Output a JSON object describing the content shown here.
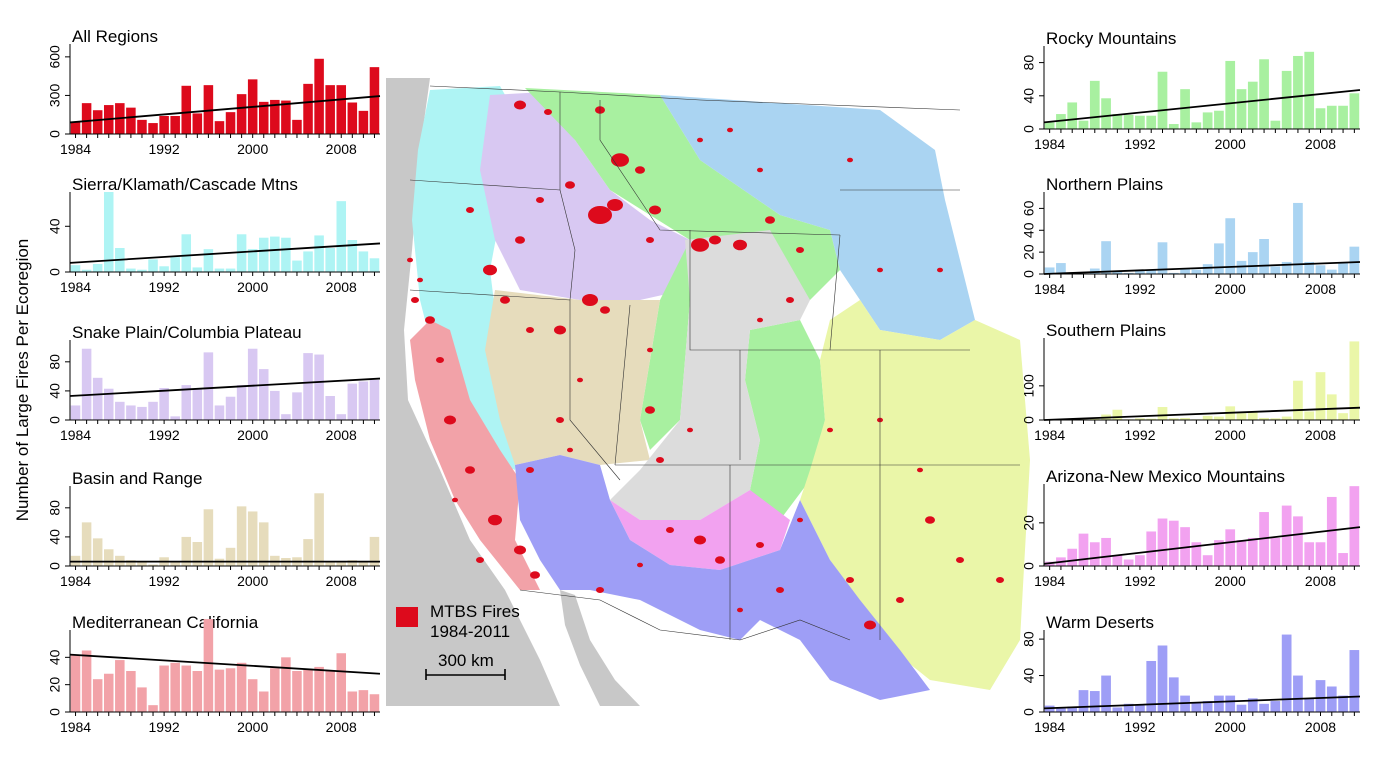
{
  "y_axis_label": "Number of Large Fires Per Ecoregion",
  "map": {
    "legend_label_line1": "MTBS Fires",
    "legend_label_line2": "1984-2011",
    "scale_label": "300 km",
    "fire_color": "#dd0a1c",
    "ocean_color": "#c8c8c8",
    "region_colors": {
      "sierra_klamath_cascade": "#aef4f4",
      "snake_columbia": "#d8c8f2",
      "rocky_mountains": "#a8f0a0",
      "northern_plains": "#aad4f2",
      "basin_and_range": "#e6dcbc",
      "mediterranean_california": "#f2a2a8",
      "southern_plains": "#eaf6a8",
      "arizona_new_mexico": "#f2a2f0",
      "warm_deserts": "#9e9ef6",
      "unclassified": "#dcdcdc"
    }
  },
  "chart_data": [
    {
      "type": "bar",
      "title": "All Regions",
      "color": "#dd0a1c",
      "x": [
        1984,
        1985,
        1986,
        1987,
        1988,
        1989,
        1990,
        1991,
        1992,
        1993,
        1994,
        1995,
        1996,
        1997,
        1998,
        1999,
        2000,
        2001,
        2002,
        2003,
        2004,
        2005,
        2006,
        2007,
        2008,
        2009,
        2010,
        2011
      ],
      "values": [
        90,
        240,
        185,
        225,
        240,
        205,
        110,
        85,
        140,
        140,
        375,
        160,
        380,
        100,
        170,
        310,
        425,
        250,
        265,
        260,
        110,
        390,
        585,
        380,
        380,
        245,
        180,
        520
      ],
      "trend": [
        90,
        295
      ],
      "ylim": [
        0,
        700
      ],
      "yticks": [
        0,
        300,
        600
      ],
      "xticks": [
        "1984",
        "1992",
        "2000",
        "2008"
      ]
    },
    {
      "type": "bar",
      "title": "Sierra/Klamath/Cascade Mtns",
      "color": "#aef4f4",
      "x": [
        1984,
        1985,
        1986,
        1987,
        1988,
        1989,
        1990,
        1991,
        1992,
        1993,
        1994,
        1995,
        1996,
        1997,
        1998,
        1999,
        2000,
        2001,
        2002,
        2003,
        2004,
        2005,
        2006,
        2007,
        2008,
        2009,
        2010,
        2011
      ],
      "values": [
        6,
        2,
        7,
        70,
        21,
        3,
        2,
        11,
        5,
        13,
        33,
        4,
        20,
        3,
        3,
        33,
        20,
        30,
        31,
        30,
        10,
        18,
        32,
        21,
        62,
        28,
        18,
        12
      ],
      "trend": [
        8,
        25
      ],
      "ylim": [
        0,
        70
      ],
      "yticks": [
        0,
        40
      ],
      "xticks": [
        "1984",
        "1992",
        "2000",
        "2008"
      ]
    },
    {
      "type": "bar",
      "title": "Snake Plain/Columbia Plateau",
      "color": "#d8c8f2",
      "x": [
        1984,
        1985,
        1986,
        1987,
        1988,
        1989,
        1990,
        1991,
        1992,
        1993,
        1994,
        1995,
        1996,
        1997,
        1998,
        1999,
        2000,
        2001,
        2002,
        2003,
        2004,
        2005,
        2006,
        2007,
        2008,
        2009,
        2010,
        2011
      ],
      "values": [
        20,
        98,
        58,
        43,
        25,
        20,
        18,
        25,
        44,
        5,
        48,
        42,
        93,
        20,
        32,
        48,
        98,
        70,
        40,
        8,
        38,
        92,
        90,
        33,
        8,
        50,
        53,
        55
      ],
      "trend": [
        33,
        57
      ],
      "ylim": [
        0,
        110
      ],
      "yticks": [
        0,
        40,
        80
      ],
      "xticks": [
        "1984",
        "1992",
        "2000",
        "2008"
      ]
    },
    {
      "type": "bar",
      "title": "Basin and Range",
      "color": "#e6dcbc",
      "x": [
        1984,
        1985,
        1986,
        1987,
        1988,
        1989,
        1990,
        1991,
        1992,
        1993,
        1994,
        1995,
        1996,
        1997,
        1998,
        1999,
        2000,
        2001,
        2002,
        2003,
        2004,
        2005,
        2006,
        2007,
        2008,
        2009,
        2010,
        2011
      ],
      "values": [
        14,
        60,
        38,
        23,
        14,
        8,
        5,
        2,
        12,
        5,
        40,
        33,
        78,
        10,
        25,
        82,
        75,
        60,
        14,
        11,
        12,
        37,
        100,
        5,
        5,
        8,
        5,
        40
      ],
      "trend": [
        6,
        6
      ],
      "ylim": [
        0,
        110
      ],
      "yticks": [
        0,
        40,
        80
      ],
      "xticks": [
        "1984",
        "1992",
        "2000",
        "2008"
      ]
    },
    {
      "type": "bar",
      "title": "Mediterranean California",
      "color": "#f2a2a8",
      "x": [
        1984,
        1985,
        1986,
        1987,
        1988,
        1989,
        1990,
        1991,
        1992,
        1993,
        1994,
        1995,
        1996,
        1997,
        1998,
        1999,
        2000,
        2001,
        2002,
        2003,
        2004,
        2005,
        2006,
        2007,
        2008,
        2009,
        2010,
        2011
      ],
      "values": [
        42,
        45,
        24,
        28,
        38,
        30,
        18,
        5,
        34,
        36,
        34,
        30,
        68,
        31,
        32,
        36,
        24,
        15,
        32,
        40,
        30,
        31,
        33,
        30,
        43,
        15,
        16,
        13
      ],
      "trend": [
        42,
        28
      ],
      "ylim": [
        0,
        60
      ],
      "yticks": [
        0,
        20,
        40
      ],
      "xticks": [
        "1984",
        "1992",
        "2000",
        "2008"
      ]
    },
    {
      "type": "bar",
      "title": "Rocky Mountains",
      "color": "#a8f0a0",
      "x": [
        1984,
        1985,
        1986,
        1987,
        1988,
        1989,
        1990,
        1991,
        1992,
        1993,
        1994,
        1995,
        1996,
        1997,
        1998,
        1999,
        2000,
        2001,
        2002,
        2003,
        2004,
        2005,
        2006,
        2007,
        2008,
        2009,
        2010,
        2011
      ],
      "values": [
        8,
        18,
        32,
        10,
        58,
        37,
        18,
        17,
        16,
        16,
        69,
        6,
        48,
        8,
        20,
        22,
        82,
        48,
        57,
        84,
        10,
        70,
        88,
        93,
        25,
        28,
        28,
        43
      ],
      "trend": [
        8,
        47
      ],
      "ylim": [
        0,
        100
      ],
      "yticks": [
        0,
        40,
        80
      ],
      "xticks": [
        "1984",
        "1992",
        "2000",
        "2008"
      ]
    },
    {
      "type": "bar",
      "title": "Northern Plains",
      "color": "#aad4f2",
      "x": [
        1984,
        1985,
        1986,
        1987,
        1988,
        1989,
        1990,
        1991,
        1992,
        1993,
        1994,
        1995,
        1996,
        1997,
        1998,
        1999,
        2000,
        2001,
        2002,
        2003,
        2004,
        2005,
        2006,
        2007,
        2008,
        2009,
        2010,
        2011
      ],
      "values": [
        6,
        10,
        1,
        0,
        5,
        30,
        2,
        1,
        3,
        4,
        29,
        1,
        5,
        4,
        9,
        28,
        51,
        12,
        20,
        32,
        7,
        11,
        65,
        11,
        8,
        4,
        10,
        25
      ],
      "trend": [
        0,
        11
      ],
      "ylim": [
        0,
        75
      ],
      "yticks": [
        0,
        20,
        40,
        60
      ],
      "xticks": [
        "1984",
        "1992",
        "2000",
        "2008"
      ]
    },
    {
      "type": "bar",
      "title": "Southern Plains",
      "color": "#eaf6a8",
      "x": [
        1984,
        1985,
        1986,
        1987,
        1988,
        1989,
        1990,
        1991,
        1992,
        1993,
        1994,
        1995,
        1996,
        1997,
        1998,
        1999,
        2000,
        2001,
        2002,
        2003,
        2004,
        2005,
        2006,
        2007,
        2008,
        2009,
        2010,
        2011
      ],
      "values": [
        0,
        0,
        4,
        2,
        6,
        16,
        30,
        2,
        5,
        4,
        38,
        5,
        6,
        2,
        12,
        10,
        40,
        20,
        25,
        6,
        5,
        10,
        115,
        25,
        140,
        75,
        20,
        230
      ],
      "trend": [
        0,
        36
      ],
      "ylim": [
        0,
        240
      ],
      "yticks": [
        0,
        100
      ],
      "xticks": [
        "1984",
        "1992",
        "2000",
        "2008"
      ]
    },
    {
      "type": "bar",
      "title": "Arizona-New Mexico Mountains",
      "color": "#f2a2f0",
      "x": [
        1984,
        1985,
        1986,
        1987,
        1988,
        1989,
        1990,
        1991,
        1992,
        1993,
        1994,
        1995,
        1996,
        1997,
        1998,
        1999,
        2000,
        2001,
        2002,
        2003,
        2004,
        2005,
        2006,
        2007,
        2008,
        2009,
        2010,
        2011
      ],
      "values": [
        2,
        4,
        8,
        15,
        11,
        13,
        5,
        3,
        5,
        16,
        22,
        21,
        18,
        11,
        5,
        12,
        17,
        12,
        13,
        25,
        13,
        28,
        23,
        11,
        11,
        32,
        6,
        37
      ],
      "trend": [
        1,
        18
      ],
      "ylim": [
        0,
        38
      ],
      "yticks": [
        0,
        20
      ],
      "xticks": [
        "1984",
        "1992",
        "2000",
        "2008"
      ]
    },
    {
      "type": "bar",
      "title": "Warm Deserts",
      "color": "#9e9ef6",
      "x": [
        1984,
        1985,
        1986,
        1987,
        1988,
        1989,
        1990,
        1991,
        1992,
        1993,
        1994,
        1995,
        1996,
        1997,
        1998,
        1999,
        2000,
        2001,
        2002,
        2003,
        2004,
        2005,
        2006,
        2007,
        2008,
        2009,
        2010,
        2011
      ],
      "values": [
        7,
        4,
        6,
        24,
        23,
        40,
        5,
        9,
        8,
        56,
        73,
        38,
        18,
        10,
        12,
        18,
        18,
        8,
        15,
        9,
        12,
        85,
        40,
        15,
        35,
        28,
        18,
        68
      ],
      "trend": [
        4,
        17
      ],
      "ylim": [
        0,
        90
      ],
      "yticks": [
        0,
        40,
        80
      ],
      "xticks": [
        "1984",
        "1992",
        "2000",
        "2008"
      ]
    }
  ]
}
